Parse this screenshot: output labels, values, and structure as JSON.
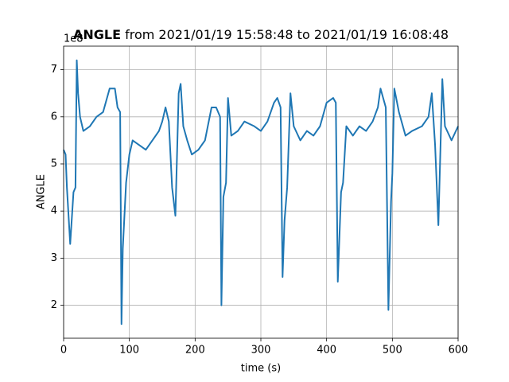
{
  "chart_data": {
    "type": "line",
    "title": {
      "bold": "ANGLE",
      "rest": "from 2021/01/19 15:58:48 to 2021/01/19 16:08:48"
    },
    "offset_text": "1e8",
    "x_label": "time (s)",
    "y_label": "ANGLE",
    "xlim": [
      0,
      600
    ],
    "xticks": [
      0,
      100,
      200,
      300,
      400,
      500,
      600
    ],
    "ylim": [
      1.3,
      7.5
    ],
    "yticks": [
      2,
      3,
      4,
      5,
      6,
      7
    ],
    "grid": true,
    "series": [
      {
        "name": "ANGLE",
        "color": "#1f77b4",
        "x": [
          0,
          3,
          5,
          10,
          15,
          18,
          20,
          22,
          25,
          30,
          40,
          50,
          60,
          70,
          78,
          82,
          86,
          88,
          90,
          95,
          100,
          105,
          115,
          125,
          135,
          145,
          150,
          155,
          160,
          165,
          170,
          175,
          178,
          182,
          188,
          195,
          205,
          215,
          225,
          232,
          238,
          240,
          243,
          247,
          250,
          255,
          265,
          275,
          290,
          300,
          310,
          320,
          325,
          330,
          333,
          336,
          340,
          345,
          350,
          360,
          370,
          380,
          390,
          400,
          410,
          414,
          417,
          422,
          425,
          430,
          440,
          450,
          460,
          470,
          478,
          482,
          490,
          494,
          498,
          500,
          503,
          510,
          520,
          530,
          545,
          555,
          560,
          565,
          570,
          576,
          580,
          590,
          600
        ],
        "values": [
          5.3,
          5.2,
          4.5,
          3.3,
          4.4,
          4.5,
          7.2,
          6.5,
          6.0,
          5.7,
          5.8,
          6.0,
          6.1,
          6.6,
          6.6,
          6.2,
          6.1,
          1.6,
          3.2,
          4.6,
          5.2,
          5.5,
          5.4,
          5.3,
          5.5,
          5.7,
          5.9,
          6.2,
          5.9,
          4.5,
          3.9,
          6.5,
          6.7,
          5.8,
          5.5,
          5.2,
          5.3,
          5.5,
          6.2,
          6.2,
          6.0,
          2.0,
          4.3,
          4.6,
          6.4,
          5.6,
          5.7,
          5.9,
          5.8,
          5.7,
          5.9,
          6.3,
          6.4,
          6.2,
          2.6,
          3.8,
          4.5,
          6.5,
          5.8,
          5.5,
          5.7,
          5.6,
          5.8,
          6.3,
          6.4,
          6.3,
          2.5,
          4.4,
          4.6,
          5.8,
          5.6,
          5.8,
          5.7,
          5.9,
          6.2,
          6.6,
          6.2,
          1.9,
          4.2,
          4.8,
          6.6,
          6.1,
          5.6,
          5.7,
          5.8,
          6.0,
          6.5,
          5.4,
          3.7,
          6.8,
          5.8,
          5.5,
          5.8
        ]
      }
    ]
  }
}
